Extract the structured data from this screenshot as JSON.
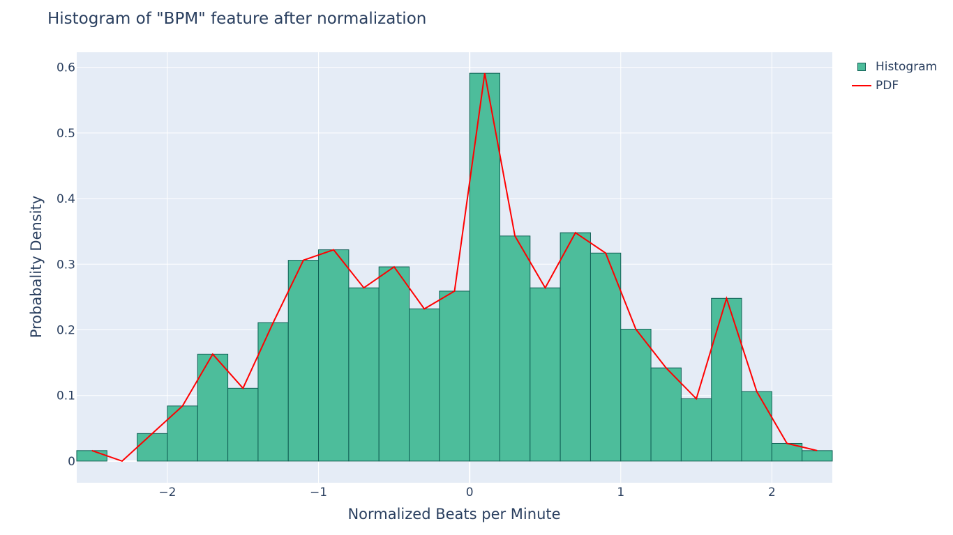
{
  "colors": {
    "plot_bg": "#e5ecf6",
    "grid": "#ffffff",
    "bar_fill": "#4dbd9b",
    "bar_stroke": "#0f5e54",
    "pdf_line": "#ff0000",
    "text": "#2a3f5f"
  },
  "chart_data": {
    "type": "bar",
    "title": "Histogram of \"BPM\" feature after normalization",
    "xlabel": "Normalized Beats per Minute",
    "ylabel": "Probabality Density",
    "xlim": [
      -2.6,
      2.4
    ],
    "ylim": [
      -0.033,
      0.623
    ],
    "x_ticks": [
      -2,
      -1,
      0,
      1,
      2
    ],
    "x_tick_labels": [
      "−2",
      "−1",
      "0",
      "1",
      "2"
    ],
    "y_ticks": [
      0,
      0.1,
      0.2,
      0.3,
      0.4,
      0.5,
      0.6
    ],
    "y_tick_labels": [
      "0",
      "0.1",
      "0.2",
      "0.3",
      "0.4",
      "0.5",
      "0.6"
    ],
    "grid": true,
    "legend_position": "top-right",
    "bin_width": 0.2,
    "bin_starts": [
      -2.6,
      -2.4,
      -2.2,
      -2.0,
      -1.8,
      -1.6,
      -1.4,
      -1.2,
      -1.0,
      -0.8,
      -0.6,
      -0.4,
      -0.2,
      0.0,
      0.2,
      0.4,
      0.6,
      0.8,
      1.0,
      1.2,
      1.4,
      1.6,
      1.8,
      2.0,
      2.2
    ],
    "series": [
      {
        "name": "Histogram",
        "type": "bar",
        "values": [
          0.016,
          0.0,
          0.042,
          0.084,
          0.163,
          0.111,
          0.211,
          0.306,
          0.322,
          0.264,
          0.296,
          0.232,
          0.259,
          0.591,
          0.343,
          0.264,
          0.348,
          0.317,
          0.201,
          0.142,
          0.095,
          0.248,
          0.106,
          0.027,
          0.016
        ]
      },
      {
        "name": "PDF",
        "type": "line",
        "x": [
          -2.5,
          -2.3,
          -2.1,
          -1.9,
          -1.7,
          -1.5,
          -1.3,
          -1.1,
          -0.9,
          -0.7,
          -0.5,
          -0.3,
          -0.1,
          0.1,
          0.3,
          0.5,
          0.7,
          0.9,
          1.1,
          1.3,
          1.5,
          1.7,
          1.9,
          2.1,
          2.3
        ],
        "values": [
          0.016,
          0.0,
          0.042,
          0.084,
          0.163,
          0.111,
          0.211,
          0.306,
          0.322,
          0.264,
          0.296,
          0.232,
          0.259,
          0.591,
          0.343,
          0.264,
          0.348,
          0.317,
          0.201,
          0.142,
          0.095,
          0.248,
          0.106,
          0.027,
          0.016
        ]
      }
    ]
  }
}
